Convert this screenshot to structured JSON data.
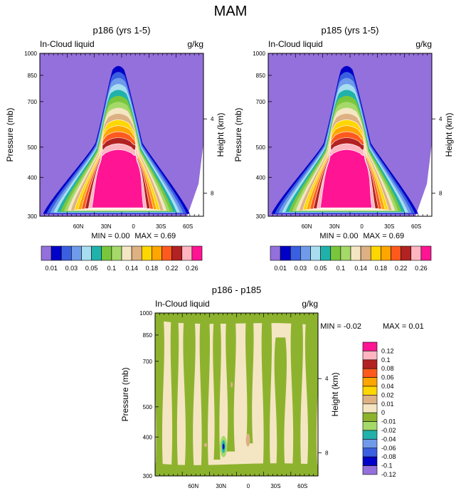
{
  "figure_title": "MAM",
  "colors": {
    "levels": [
      "#9370DB",
      "#0000C8",
      "#3A5FE0",
      "#6F9BEA",
      "#A8DDF0",
      "#20B2AA",
      "#79C63C",
      "#A5D96A",
      "#F5E6C3",
      "#DDB184",
      "#FFD700",
      "#FFA500",
      "#FF5A1E",
      "#B22222",
      "#FFB6C1",
      "#FF1493"
    ],
    "diff_levels": [
      "#9370DB",
      "#0000C8",
      "#3A5FE0",
      "#6F9BEA",
      "#20B2AA",
      "#A5D96A",
      "#8DB32E",
      "#F5E6C3",
      "#DDB184",
      "#FFD700",
      "#FFA500",
      "#FF5A1E",
      "#B22222",
      "#FFB6C1",
      "#FF1493"
    ],
    "line": "#FFFFFF"
  },
  "chart_data": [
    {
      "type": "contour",
      "title": "p186 (yrs 1-5)",
      "left_label": "In-Cloud liquid",
      "right_label": "g/kg",
      "ylabel": "Pressure (mb)",
      "ylabel_right": "Height (km)",
      "y_ticks": [
        "300",
        "400",
        "500",
        "700",
        "850",
        "1000"
      ],
      "y_right_ticks": [
        "8",
        "4"
      ],
      "x_ticks": [
        "60N",
        "30N",
        "0",
        "30S",
        "60S"
      ],
      "min_label": "MIN =",
      "min_value": "0.00",
      "max_label": "MAX =",
      "max_value": "0.69",
      "ylim": [
        1000,
        300
      ],
      "xlim": [
        "90N",
        "90S"
      ],
      "colorbar_levels": [
        "0.01",
        "0.03",
        "0.05",
        "0.1",
        "0.14",
        "0.18",
        "0.22",
        "0.26"
      ]
    },
    {
      "type": "contour",
      "title": "p185 (yrs 1-5)",
      "left_label": "In-Cloud liquid",
      "right_label": "g/kg",
      "ylabel": "Pressure (mb)",
      "ylabel_right": "Height (km)",
      "y_ticks": [
        "300",
        "400",
        "500",
        "700",
        "850",
        "1000"
      ],
      "y_right_ticks": [
        "8",
        "4"
      ],
      "x_ticks": [
        "60N",
        "30N",
        "0",
        "30S",
        "60S"
      ],
      "min_label": "MIN =",
      "min_value": "0.00",
      "max_label": "MAX =",
      "max_value": "0.69",
      "ylim": [
        1000,
        300
      ],
      "xlim": [
        "90N",
        "90S"
      ],
      "colorbar_levels": [
        "0.01",
        "0.03",
        "0.05",
        "0.1",
        "0.14",
        "0.18",
        "0.22",
        "0.26"
      ]
    },
    {
      "type": "contour",
      "title": "p186 - p185",
      "left_label": "In-Cloud liquid",
      "right_label": "g/kg",
      "ylabel": "Pressure (mb)",
      "ylabel_right": "Height (km)",
      "y_ticks": [
        "300",
        "400",
        "500",
        "700",
        "850",
        "1000"
      ],
      "y_right_ticks": [
        "8",
        "4"
      ],
      "x_ticks": [
        "60N",
        "30N",
        "0",
        "30S",
        "60S"
      ],
      "min_label": "MIN =",
      "min_value": "-0.02",
      "max_label": "MAX =",
      "max_value": "0.01",
      "ylim": [
        1000,
        300
      ],
      "xlim": [
        "90N",
        "90S"
      ],
      "colorbar_levels": [
        "0.12",
        "0.1",
        "0.08",
        "0.06",
        "0.04",
        "0.02",
        "0.01",
        "0",
        "-0.01",
        "-0.02",
        "-0.04",
        "-0.06",
        "-0.08",
        "-0.1",
        "-0.12"
      ]
    }
  ]
}
